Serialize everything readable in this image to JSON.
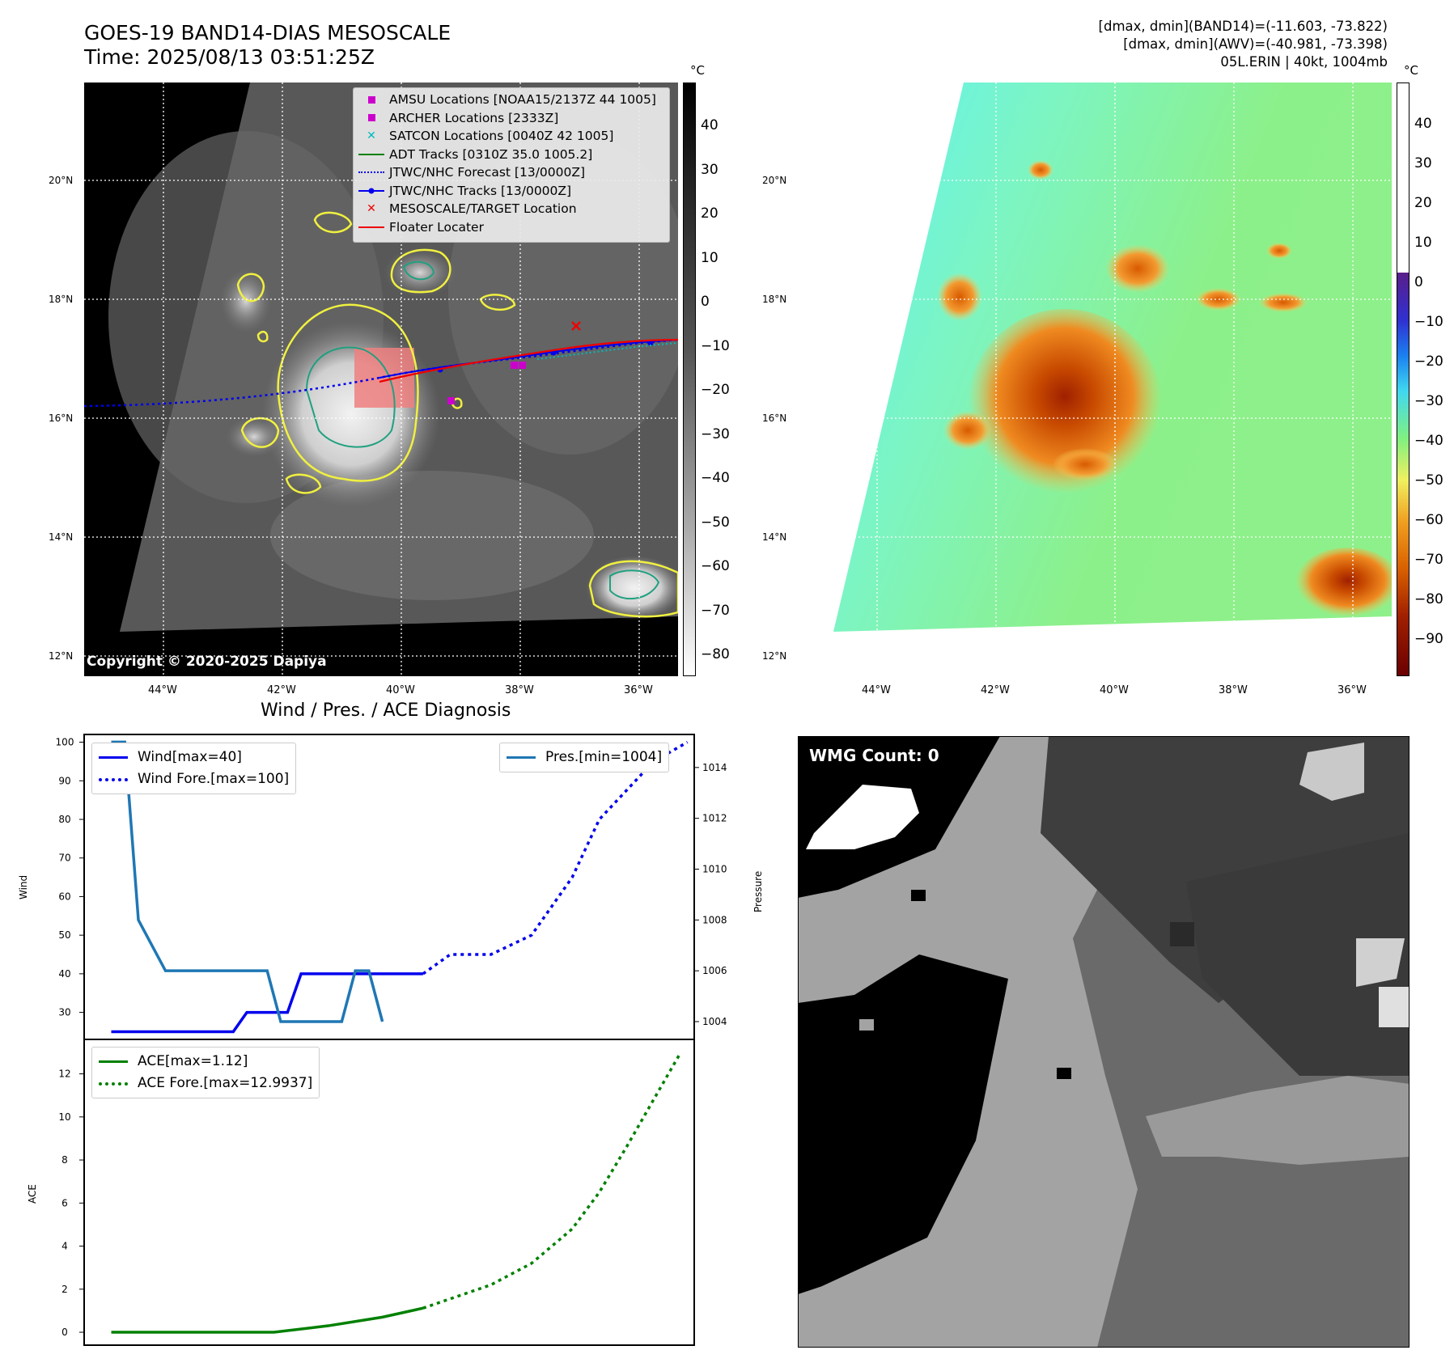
{
  "header": {
    "title_line1": "GOES-19 BAND14-DIAS MESOSCALE",
    "title_line2": "Time: 2025/08/13 03:51:25Z",
    "info_line1": "[dmax, dmin](BAND14)=(-11.603, -73.822)",
    "info_line2": "[dmax, dmin](AWV)=(-40.981, -73.398)",
    "info_line3": "05L.ERIN | 40kt, 1004mb"
  },
  "colorbar": {
    "unit": "°C",
    "ir_ticks": [
      "40",
      "30",
      "20",
      "10",
      "0",
      "−10",
      "−20",
      "−30",
      "−40",
      "−50",
      "−60",
      "−70",
      "−80"
    ],
    "awv_ticks": [
      "40",
      "30",
      "20",
      "10",
      "0",
      "−10",
      "−20",
      "−30",
      "−40",
      "−50",
      "−60",
      "−70",
      "−80",
      "−90"
    ]
  },
  "map": {
    "lat_ticks": [
      "20°N",
      "18°N",
      "16°N",
      "14°N",
      "12°N"
    ],
    "lon_ticks": [
      "44°W",
      "42°W",
      "40°W",
      "38°W",
      "36°W"
    ],
    "legend": [
      {
        "label": "AMSU Locations [NOAA15/2137Z 44 1005]",
        "icon": "magenta-square-icon",
        "color": "#cc00cc"
      },
      {
        "label": "ARCHER Locations [2333Z]",
        "icon": "magenta-square-icon",
        "color": "#cc00cc"
      },
      {
        "label": "SATCON Locations [0040Z 42 1005]",
        "icon": "cyan-x-icon",
        "color": "#00bbbb"
      },
      {
        "label": "ADT Tracks [0310Z 35.0 1005.2]",
        "icon": "green-line-icon",
        "color": "#008000"
      },
      {
        "label": "JTWC/NHC Forecast [13/0000Z]",
        "icon": "blue-dotted-line-icon",
        "color": "#0000ee"
      },
      {
        "label": "JTWC/NHC Tracks [13/0000Z]",
        "icon": "blue-line-dot-icon",
        "color": "#0000ee"
      },
      {
        "label": "MESOSCALE/TARGET Location",
        "icon": "red-x-icon",
        "color": "#ee0000"
      },
      {
        "label": "Floater Locater",
        "icon": "red-line-icon",
        "color": "#ee0000"
      }
    ],
    "copyright": "Copyright © 2020-2025 Dapiya"
  },
  "wmg": {
    "label": "WMG Count: 0"
  },
  "chart_data": [
    {
      "type": "line",
      "title": "Wind / Pres. / ACE Diagnosis",
      "ylabel": "Wind",
      "ylabel_right": "Pressure",
      "ylim": [
        23,
        102
      ],
      "ylim_right": [
        1003.3,
        1015.3
      ],
      "y_ticks": [
        100,
        90,
        80,
        70,
        60,
        50,
        40,
        30
      ],
      "y_ticks_right": [
        1014,
        1012,
        1010,
        1008,
        1006,
        1004
      ],
      "xlim": [
        0,
        45
      ],
      "legend_left": [
        "Wind[max=40]",
        "Wind Fore.[max=100]"
      ],
      "legend_right": [
        "Pres.[min=1004]"
      ],
      "series": [
        {
          "name": "Wind[max=40]",
          "axis": "left",
          "color": "#0000ee",
          "style": "solid",
          "x": [
            2,
            11,
            12,
            15,
            16,
            18,
            25
          ],
          "y": [
            25,
            25,
            30,
            30,
            40,
            40,
            40
          ]
        },
        {
          "name": "Wind Fore.[max=100]",
          "axis": "left",
          "color": "#0000ee",
          "style": "dotted",
          "x": [
            25,
            27,
            30,
            33,
            36,
            38,
            42,
            44.5
          ],
          "y": [
            40,
            45,
            45,
            50,
            65,
            80,
            95,
            100
          ]
        },
        {
          "name": "Pres.[min=1004]",
          "axis": "right",
          "color": "#1f77b4",
          "style": "solid",
          "x": [
            2,
            3,
            4,
            6,
            13.5,
            14.5,
            18,
            19,
            20,
            21,
            22
          ],
          "y": [
            1015,
            1015,
            1008,
            1006,
            1006,
            1004,
            1004,
            1004,
            1006,
            1006,
            1004
          ]
        }
      ]
    },
    {
      "type": "line",
      "ylabel": "ACE",
      "ylim": [
        -0.6,
        13.6
      ],
      "y_ticks": [
        12,
        10,
        8,
        6,
        4,
        2,
        0
      ],
      "xlim": [
        0,
        45
      ],
      "legend": [
        "ACE[max=1.12]",
        "ACE Fore.[max=12.9937]"
      ],
      "series": [
        {
          "name": "ACE[max=1.12]",
          "color": "#008000",
          "style": "solid",
          "x": [
            2,
            14,
            18,
            22,
            25
          ],
          "y": [
            0,
            0,
            0.3,
            0.7,
            1.12
          ]
        },
        {
          "name": "ACE Fore.[max=12.9937]",
          "color": "#008000",
          "style": "dotted",
          "x": [
            25,
            30,
            33,
            36,
            38,
            40,
            42,
            44
          ],
          "y": [
            1.12,
            2.2,
            3.2,
            4.8,
            6.5,
            8.6,
            10.8,
            12.99
          ]
        }
      ]
    }
  ]
}
